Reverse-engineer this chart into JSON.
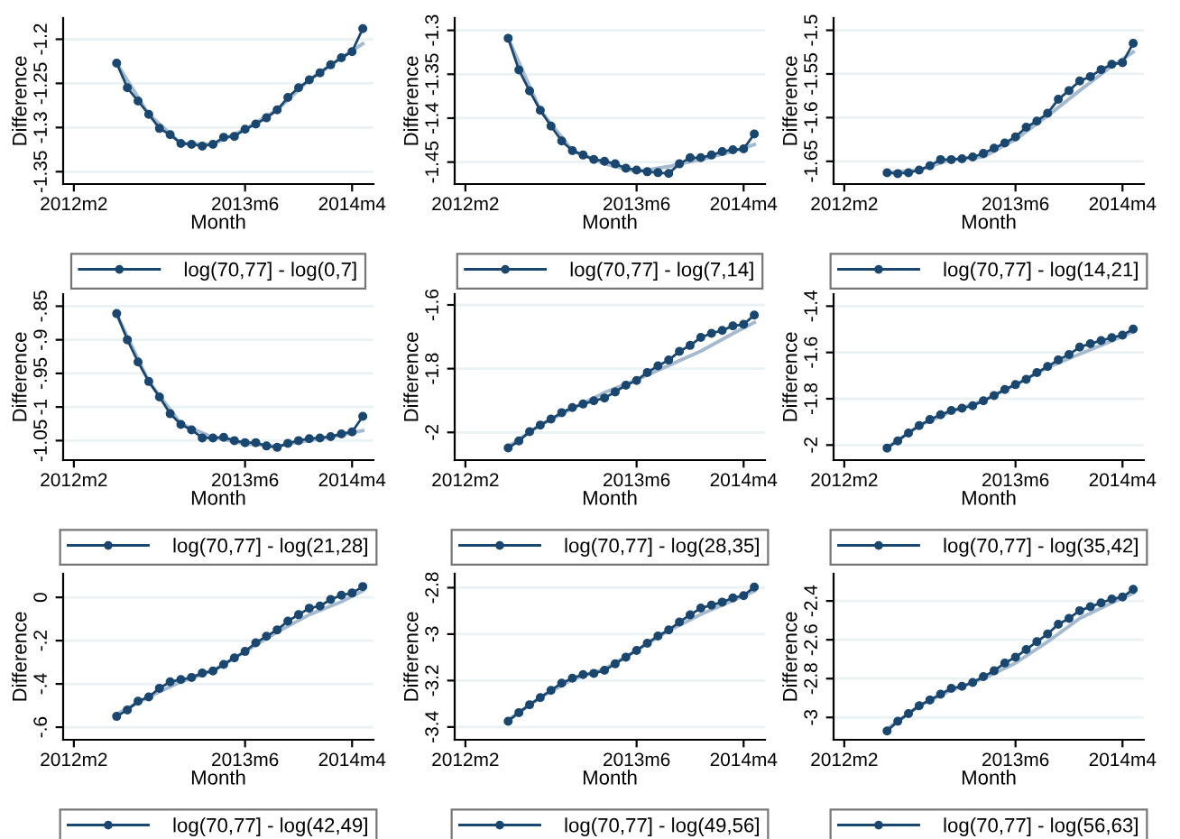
{
  "chart_data": [
    {
      "type": "line",
      "xlabel": "Month",
      "ylabel": "Difference",
      "x": [
        "2012-06",
        "2012-07",
        "2012-08",
        "2012-09",
        "2012-10",
        "2012-11",
        "2012-12",
        "2013-01",
        "2013-02",
        "2013-03",
        "2013-04",
        "2013-05",
        "2013-06",
        "2013-07",
        "2013-08",
        "2013-09",
        "2013-10",
        "2013-11",
        "2013-12",
        "2014-01",
        "2014-02",
        "2014-03",
        "2014-04",
        "2014-05"
      ],
      "xlim": [
        "2012-01",
        "2014-06"
      ],
      "xticks": [
        {
          "value": "2012-02",
          "label": "2012m2"
        },
        {
          "value": "2013-06",
          "label": "2013m6"
        },
        {
          "value": "2014-04",
          "label": "2014m4"
        }
      ],
      "ylim": [
        -1.364,
        -1.176
      ],
      "yticks": [
        {
          "value": -1.35,
          "label": "-1.35"
        },
        {
          "value": -1.3,
          "label": "-1.3"
        },
        {
          "value": -1.25,
          "label": "-1.25"
        },
        {
          "value": -1.2,
          "label": "-1.2"
        }
      ],
      "grid": "y",
      "legend": "bottom",
      "series": [
        {
          "name": "log(70,77] - log(0,7]",
          "color": "#1a476f",
          "marker": "circle",
          "values": [
            -1.227,
            -1.255,
            -1.27,
            -1.285,
            -1.301,
            -1.308,
            -1.318,
            -1.319,
            -1.321,
            -1.319,
            -1.311,
            -1.31,
            -1.302,
            -1.296,
            -1.289,
            -1.28,
            -1.266,
            -1.255,
            -1.246,
            -1.238,
            -1.229,
            -1.221,
            -1.214,
            -1.188
          ]
        },
        {
          "type": "line",
          "color": "#a5b9cf",
          "marker": "none",
          "x": [
            "2012-06",
            "2012-09",
            "2012-12",
            "2013-03",
            "2013-06",
            "2013-09",
            "2013-12",
            "2014-03",
            "2014-05"
          ],
          "values": [
            -1.227,
            -1.285,
            -1.318,
            -1.319,
            -1.302,
            -1.28,
            -1.246,
            -1.221,
            -1.205
          ]
        }
      ]
    },
    {
      "type": "line",
      "xlabel": "Month",
      "ylabel": "Difference",
      "x": [
        "2012-06",
        "2012-07",
        "2012-08",
        "2012-09",
        "2012-10",
        "2012-11",
        "2012-12",
        "2013-01",
        "2013-02",
        "2013-03",
        "2013-04",
        "2013-05",
        "2013-06",
        "2013-07",
        "2013-08",
        "2013-09",
        "2013-10",
        "2013-11",
        "2013-12",
        "2014-01",
        "2014-02",
        "2014-03",
        "2014-04",
        "2014-05"
      ],
      "xlim": [
        "2012-01",
        "2014-06"
      ],
      "xticks": [
        {
          "value": "2012-02",
          "label": "2012m2"
        },
        {
          "value": "2013-06",
          "label": "2013m6"
        },
        {
          "value": "2014-04",
          "label": "2014m4"
        }
      ],
      "ylim": [
        -1.475,
        -1.286
      ],
      "yticks": [
        {
          "value": -1.45,
          "label": "-1.45"
        },
        {
          "value": -1.4,
          "label": "-1.4"
        },
        {
          "value": -1.35,
          "label": "-1.35"
        },
        {
          "value": -1.3,
          "label": "-1.3"
        }
      ],
      "grid": "y",
      "legend": "bottom",
      "series": [
        {
          "name": "log(70,77] - log(7,14]",
          "color": "#1a476f",
          "marker": "circle",
          "values": [
            -1.309,
            -1.345,
            -1.369,
            -1.391,
            -1.409,
            -1.426,
            -1.437,
            -1.442,
            -1.447,
            -1.449,
            -1.452,
            -1.457,
            -1.459,
            -1.461,
            -1.462,
            -1.463,
            -1.452,
            -1.445,
            -1.445,
            -1.442,
            -1.438,
            -1.436,
            -1.435,
            -1.418
          ]
        },
        {
          "type": "line",
          "color": "#a5b9cf",
          "marker": "none",
          "x": [
            "2012-06",
            "2012-09",
            "2012-12",
            "2013-03",
            "2013-06",
            "2013-09",
            "2013-12",
            "2014-03",
            "2014-05"
          ],
          "values": [
            -1.309,
            -1.391,
            -1.437,
            -1.452,
            -1.461,
            -1.455,
            -1.447,
            -1.438,
            -1.43
          ]
        }
      ]
    },
    {
      "type": "line",
      "xlabel": "Month",
      "ylabel": "Difference",
      "x": [
        "2012-06",
        "2012-07",
        "2012-08",
        "2012-09",
        "2012-10",
        "2012-11",
        "2012-12",
        "2013-01",
        "2013-02",
        "2013-03",
        "2013-04",
        "2013-05",
        "2013-06",
        "2013-07",
        "2013-08",
        "2013-09",
        "2013-10",
        "2013-11",
        "2013-12",
        "2014-01",
        "2014-02",
        "2014-03",
        "2014-04",
        "2014-05"
      ],
      "xlim": [
        "2012-01",
        "2014-06"
      ],
      "xticks": [
        {
          "value": "2012-02",
          "label": "2012m2"
        },
        {
          "value": "2013-06",
          "label": "2013m6"
        },
        {
          "value": "2014-04",
          "label": "2014m4"
        }
      ],
      "ylim": [
        -1.676,
        -1.486
      ],
      "yticks": [
        {
          "value": -1.65,
          "label": "-1.65"
        },
        {
          "value": -1.6,
          "label": "-1.6"
        },
        {
          "value": -1.55,
          "label": "-1.55"
        },
        {
          "value": -1.5,
          "label": "-1.5"
        }
      ],
      "grid": "y",
      "legend": "bottom",
      "series": [
        {
          "name": "log(70,77] - log(14,21]",
          "color": "#1a476f",
          "marker": "circle",
          "values": [
            -1.663,
            -1.664,
            -1.663,
            -1.66,
            -1.655,
            -1.648,
            -1.648,
            -1.647,
            -1.645,
            -1.641,
            -1.635,
            -1.629,
            -1.622,
            -1.611,
            -1.604,
            -1.595,
            -1.579,
            -1.569,
            -1.558,
            -1.553,
            -1.545,
            -1.539,
            -1.537,
            -1.515
          ]
        },
        {
          "type": "line",
          "color": "#a5b9cf",
          "marker": "none",
          "x": [
            "2012-06",
            "2012-09",
            "2012-12",
            "2013-03",
            "2013-06",
            "2013-09",
            "2013-12",
            "2014-03",
            "2014-05"
          ],
          "values": [
            -1.663,
            -1.66,
            -1.648,
            -1.645,
            -1.625,
            -1.598,
            -1.569,
            -1.541,
            -1.525
          ]
        }
      ]
    },
    {
      "type": "line",
      "xlabel": "Month",
      "ylabel": "Difference",
      "x": [
        "2012-06",
        "2012-07",
        "2012-08",
        "2012-09",
        "2012-10",
        "2012-11",
        "2012-12",
        "2013-01",
        "2013-02",
        "2013-03",
        "2013-04",
        "2013-05",
        "2013-06",
        "2013-07",
        "2013-08",
        "2013-09",
        "2013-10",
        "2013-11",
        "2013-12",
        "2014-01",
        "2014-02",
        "2014-03",
        "2014-04",
        "2014-05"
      ],
      "xlim": [
        "2012-01",
        "2014-06"
      ],
      "xticks": [
        {
          "value": "2012-02",
          "label": "2012m2"
        },
        {
          "value": "2013-06",
          "label": "2013m6"
        },
        {
          "value": "2014-04",
          "label": "2014m4"
        }
      ],
      "ylim": [
        -1.079,
        -0.832
      ],
      "yticks": [
        {
          "value": -1.05,
          "label": "-1.05"
        },
        {
          "value": -1,
          "label": "-1"
        },
        {
          "value": -0.95,
          "label": "-.95"
        },
        {
          "value": -0.9,
          "label": "-.9"
        },
        {
          "value": -0.85,
          "label": "-.85"
        }
      ],
      "grid": "y",
      "legend": "bottom",
      "series": [
        {
          "name": "log(70,77] - log(21,28]",
          "color": "#1a476f",
          "marker": "circle",
          "values": [
            -0.861,
            -0.9,
            -0.933,
            -0.962,
            -0.985,
            -1.01,
            -1.026,
            -1.034,
            -1.046,
            -1.046,
            -1.045,
            -1.05,
            -1.053,
            -1.053,
            -1.058,
            -1.06,
            -1.054,
            -1.05,
            -1.047,
            -1.046,
            -1.044,
            -1.04,
            -1.037,
            -1.014
          ]
        },
        {
          "type": "line",
          "color": "#a5b9cf",
          "marker": "none",
          "x": [
            "2012-06",
            "2012-09",
            "2012-12",
            "2013-03",
            "2013-06",
            "2013-09",
            "2013-12",
            "2014-03",
            "2014-05"
          ],
          "values": [
            -0.862,
            -0.962,
            -1.025,
            -1.045,
            -1.055,
            -1.058,
            -1.05,
            -1.042,
            -1.035
          ]
        }
      ]
    },
    {
      "type": "line",
      "xlabel": "Month",
      "ylabel": "Difference",
      "x": [
        "2012-06",
        "2012-07",
        "2012-08",
        "2012-09",
        "2012-10",
        "2012-11",
        "2012-12",
        "2013-01",
        "2013-02",
        "2013-03",
        "2013-04",
        "2013-05",
        "2013-06",
        "2013-07",
        "2013-08",
        "2013-09",
        "2013-10",
        "2013-11",
        "2013-12",
        "2014-01",
        "2014-02",
        "2014-03",
        "2014-04",
        "2014-05"
      ],
      "xlim": [
        "2012-01",
        "2014-06"
      ],
      "xticks": [
        {
          "value": "2012-02",
          "label": "2012m2"
        },
        {
          "value": "2013-06",
          "label": "2013m6"
        },
        {
          "value": "2014-04",
          "label": "2014m4"
        }
      ],
      "ylim": [
        -2.087,
        -1.566
      ],
      "yticks": [
        -2,
        -1.8,
        -1.6
      ],
      "grid": "y",
      "legend": "bottom",
      "series": [
        {
          "name": "log(70,77] - log(28,35]",
          "color": "#1a476f",
          "marker": "circle",
          "values": [
            -2.049,
            -2.027,
            -1.998,
            -1.977,
            -1.958,
            -1.938,
            -1.922,
            -1.911,
            -1.901,
            -1.892,
            -1.873,
            -1.852,
            -1.837,
            -1.812,
            -1.791,
            -1.773,
            -1.746,
            -1.727,
            -1.702,
            -1.689,
            -1.68,
            -1.666,
            -1.661,
            -1.632
          ]
        },
        {
          "type": "line",
          "color": "#a5b9cf",
          "marker": "none",
          "x": [
            "2012-06",
            "2012-09",
            "2012-12",
            "2013-03",
            "2013-06",
            "2013-09",
            "2013-12",
            "2014-03",
            "2014-05"
          ],
          "values": [
            -2.045,
            -1.977,
            -1.925,
            -1.875,
            -1.835,
            -1.79,
            -1.745,
            -1.69,
            -1.655
          ]
        }
      ]
    },
    {
      "type": "line",
      "xlabel": "Month",
      "ylabel": "Difference",
      "x": [
        "2012-06",
        "2012-07",
        "2012-08",
        "2012-09",
        "2012-10",
        "2012-11",
        "2012-12",
        "2013-01",
        "2013-02",
        "2013-03",
        "2013-04",
        "2013-05",
        "2013-06",
        "2013-07",
        "2013-08",
        "2013-09",
        "2013-10",
        "2013-11",
        "2013-12",
        "2014-01",
        "2014-02",
        "2014-03",
        "2014-04",
        "2014-05"
      ],
      "xlim": [
        "2012-01",
        "2014-06"
      ],
      "xticks": [
        {
          "value": "2012-02",
          "label": "2012m2"
        },
        {
          "value": "2013-06",
          "label": "2013m6"
        },
        {
          "value": "2014-04",
          "label": "2014m4"
        }
      ],
      "ylim": [
        -2.065,
        -1.348
      ],
      "yticks": [
        -2,
        -1.8,
        -1.6,
        -1.4
      ],
      "grid": "y",
      "legend": "bottom",
      "series": [
        {
          "name": "log(70,77] - log(35,42]",
          "color": "#1a476f",
          "marker": "circle",
          "values": [
            -2.013,
            -1.982,
            -1.948,
            -1.916,
            -1.89,
            -1.869,
            -1.851,
            -1.841,
            -1.83,
            -1.809,
            -1.786,
            -1.76,
            -1.739,
            -1.716,
            -1.687,
            -1.661,
            -1.632,
            -1.609,
            -1.577,
            -1.562,
            -1.549,
            -1.536,
            -1.525,
            -1.499
          ]
        },
        {
          "type": "line",
          "color": "#a5b9cf",
          "marker": "none",
          "x": [
            "2012-06",
            "2012-09",
            "2012-12",
            "2013-03",
            "2013-06",
            "2013-09",
            "2013-12",
            "2014-03",
            "2014-05"
          ],
          "values": [
            -2.01,
            -1.916,
            -1.855,
            -1.808,
            -1.74,
            -1.665,
            -1.607,
            -1.55,
            -1.51
          ]
        }
      ]
    },
    {
      "type": "line",
      "xlabel": "Month",
      "ylabel": "Difference",
      "x": [
        "2012-06",
        "2012-07",
        "2012-08",
        "2012-09",
        "2012-10",
        "2012-11",
        "2012-12",
        "2013-01",
        "2013-02",
        "2013-03",
        "2013-04",
        "2013-05",
        "2013-06",
        "2013-07",
        "2013-08",
        "2013-09",
        "2013-10",
        "2013-11",
        "2013-12",
        "2014-01",
        "2014-02",
        "2014-03",
        "2014-04",
        "2014-05"
      ],
      "xlim": [
        "2012-01",
        "2014-06"
      ],
      "xticks": [
        {
          "value": "2012-02",
          "label": "2012m2"
        },
        {
          "value": "2013-06",
          "label": "2013m6"
        },
        {
          "value": "2014-04",
          "label": "2014m4"
        }
      ],
      "ylim": [
        -0.658,
        0.109
      ],
      "yticks": [
        {
          "value": -0.6,
          "label": "-.6"
        },
        {
          "value": -0.4,
          "label": "-.4"
        },
        {
          "value": -0.2,
          "label": "-.2"
        },
        0
      ],
      "grid": "y",
      "legend": "bottom",
      "series": [
        {
          "name": "log(70,77] - log(42,49]",
          "color": "#1a476f",
          "marker": "circle",
          "values": [
            -0.55,
            -0.52,
            -0.48,
            -0.46,
            -0.42,
            -0.39,
            -0.38,
            -0.37,
            -0.35,
            -0.34,
            -0.31,
            -0.28,
            -0.25,
            -0.21,
            -0.18,
            -0.15,
            -0.11,
            -0.08,
            -0.05,
            -0.04,
            -0.01,
            0.01,
            0.02,
            0.05
          ]
        },
        {
          "type": "line",
          "color": "#a5b9cf",
          "marker": "none",
          "x": [
            "2012-06",
            "2012-09",
            "2012-12",
            "2013-03",
            "2013-06",
            "2013-09",
            "2013-12",
            "2014-03",
            "2014-05"
          ],
          "values": [
            -0.54,
            -0.46,
            -0.39,
            -0.34,
            -0.25,
            -0.16,
            -0.08,
            -0.02,
            0.03
          ]
        }
      ]
    },
    {
      "type": "line",
      "xlabel": "Month",
      "ylabel": "Difference",
      "x": [
        "2012-06",
        "2012-07",
        "2012-08",
        "2012-09",
        "2012-10",
        "2012-11",
        "2012-12",
        "2013-01",
        "2013-02",
        "2013-03",
        "2013-04",
        "2013-05",
        "2013-06",
        "2013-07",
        "2013-08",
        "2013-09",
        "2013-10",
        "2013-11",
        "2013-12",
        "2014-01",
        "2014-02",
        "2014-03",
        "2014-04",
        "2014-05"
      ],
      "xlim": [
        "2012-01",
        "2014-06"
      ],
      "xticks": [
        {
          "value": "2012-02",
          "label": "2012m2"
        },
        {
          "value": "2013-06",
          "label": "2013m6"
        },
        {
          "value": "2014-04",
          "label": "2014m4"
        }
      ],
      "ylim": [
        -3.455,
        -2.74
      ],
      "yticks": [
        -3.4,
        -3.2,
        -3,
        -2.8
      ],
      "grid": "y",
      "legend": "bottom",
      "series": [
        {
          "name": "log(70,77] - log(49,56]",
          "color": "#1a476f",
          "marker": "circle",
          "values": [
            -3.375,
            -3.338,
            -3.304,
            -3.273,
            -3.242,
            -3.211,
            -3.19,
            -3.174,
            -3.169,
            -3.156,
            -3.128,
            -3.099,
            -3.07,
            -3.039,
            -3.008,
            -2.982,
            -2.948,
            -2.917,
            -2.888,
            -2.875,
            -2.862,
            -2.844,
            -2.834,
            -2.797
          ]
        },
        {
          "type": "line",
          "color": "#a5b9cf",
          "marker": "none",
          "x": [
            "2012-06",
            "2012-09",
            "2012-12",
            "2013-03",
            "2013-06",
            "2013-09",
            "2013-12",
            "2014-03",
            "2014-05"
          ],
          "values": [
            -3.37,
            -3.273,
            -3.195,
            -3.15,
            -3.07,
            -2.985,
            -2.915,
            -2.855,
            -2.815
          ]
        }
      ]
    },
    {
      "type": "line",
      "xlabel": "Month",
      "ylabel": "Difference",
      "x": [
        "2012-06",
        "2012-07",
        "2012-08",
        "2012-09",
        "2012-10",
        "2012-11",
        "2012-12",
        "2013-01",
        "2013-02",
        "2013-03",
        "2013-04",
        "2013-05",
        "2013-06",
        "2013-07",
        "2013-08",
        "2013-09",
        "2013-10",
        "2013-11",
        "2013-12",
        "2014-01",
        "2014-02",
        "2014-03",
        "2014-04",
        "2014-05"
      ],
      "xlim": [
        "2012-01",
        "2014-06"
      ],
      "xticks": [
        {
          "value": "2012-02",
          "label": "2012m2"
        },
        {
          "value": "2013-06",
          "label": "2013m6"
        },
        {
          "value": "2014-04",
          "label": "2014m4"
        }
      ],
      "ylim": [
        -3.115,
        -2.26
      ],
      "yticks": [
        -3,
        -2.8,
        -2.6,
        -2.4
      ],
      "grid": "y",
      "legend": "bottom",
      "series": [
        {
          "name": "log(70,77] - log(56,63]",
          "color": "#1a476f",
          "marker": "circle",
          "values": [
            -3.07,
            -3.02,
            -2.98,
            -2.94,
            -2.91,
            -2.88,
            -2.85,
            -2.84,
            -2.82,
            -2.79,
            -2.76,
            -2.72,
            -2.69,
            -2.65,
            -2.61,
            -2.57,
            -2.52,
            -2.49,
            -2.45,
            -2.43,
            -2.41,
            -2.39,
            -2.38,
            -2.34
          ]
        },
        {
          "type": "line",
          "color": "#a5b9cf",
          "marker": "none",
          "x": [
            "2012-06",
            "2012-09",
            "2012-12",
            "2013-03",
            "2013-06",
            "2013-09",
            "2013-12",
            "2014-03",
            "2014-05"
          ],
          "values": [
            -3.06,
            -2.94,
            -2.86,
            -2.8,
            -2.72,
            -2.61,
            -2.49,
            -2.41,
            -2.36
          ]
        }
      ]
    }
  ]
}
